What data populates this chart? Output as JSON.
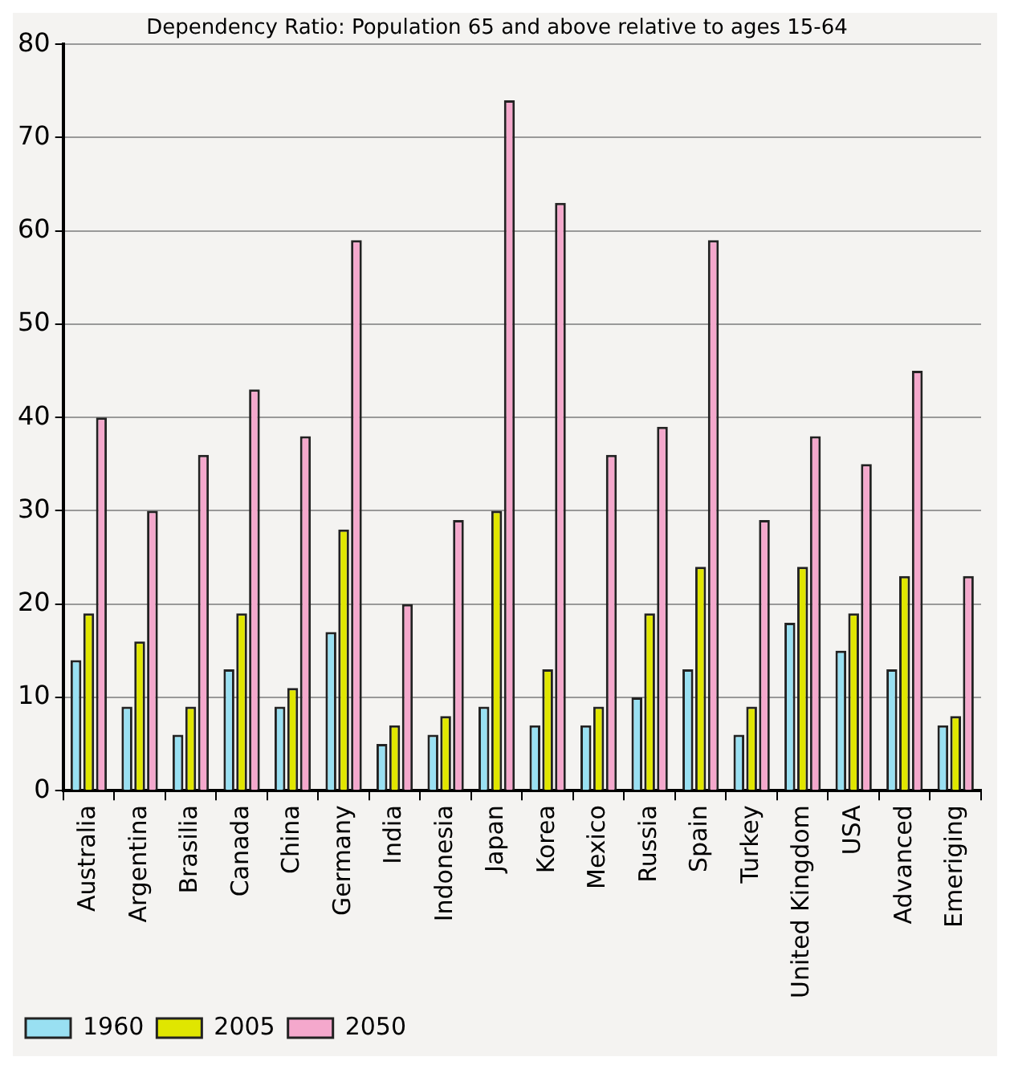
{
  "chart_data": {
    "type": "bar",
    "title": "Dependency Ratio: Population 65 and above relative to ages 15-64",
    "categories": [
      "Australia",
      "Argentina",
      "Brasilia",
      "Canada",
      "China",
      "Germany",
      "India",
      "Indonesia",
      "Japan",
      "Korea",
      "Mexico",
      "Russia",
      "Spain",
      "Turkey",
      "United Kingdom",
      "USA",
      "Advanced",
      "Emeriging"
    ],
    "series": [
      {
        "name": "1960",
        "color": "#99e0f2",
        "values": [
          14,
          9,
          6,
          13,
          9,
          17,
          5,
          6,
          9,
          7,
          7,
          10,
          13,
          6,
          18,
          15,
          13,
          7
        ]
      },
      {
        "name": "2005",
        "color": "#e0e600",
        "values": [
          19,
          16,
          9,
          19,
          11,
          28,
          7,
          8,
          30,
          13,
          9,
          19,
          24,
          9,
          24,
          19,
          23,
          8
        ]
      },
      {
        "name": "2050",
        "color": "#f4a8cc",
        "values": [
          40,
          30,
          36,
          43,
          38,
          59,
          20,
          29,
          74,
          63,
          36,
          39,
          59,
          29,
          38,
          35,
          45,
          23
        ]
      }
    ],
    "ylim": [
      0,
      80
    ],
    "yticks": [
      0,
      10,
      20,
      30,
      40,
      50,
      60,
      70,
      80
    ],
    "grid": "y",
    "legend": "bottom left"
  }
}
